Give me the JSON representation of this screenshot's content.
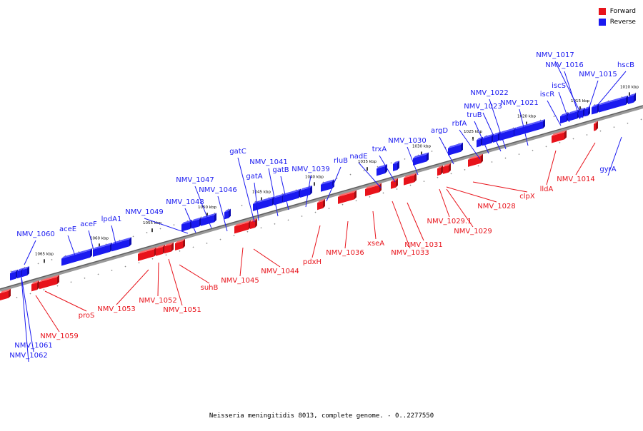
{
  "legend": {
    "forward": {
      "label": "Forward",
      "color": "#e8131b"
    },
    "reverse": {
      "label": "Reverse",
      "color": "#1a1af0"
    }
  },
  "caption": "Neisseria meningitidis 8013, complete genome. - 0..2277550",
  "ticks": [
    {
      "label": "1010 kbp"
    },
    {
      "label": "1015 kbp"
    },
    {
      "label": "1020 kbp"
    },
    {
      "label": "1025 kbp"
    },
    {
      "label": "1030 kbp"
    },
    {
      "label": "1035 kbp"
    },
    {
      "label": "1040 kbp"
    },
    {
      "label": "1045 kbp"
    },
    {
      "label": "1050 kbp"
    },
    {
      "label": "1055 kbp"
    },
    {
      "label": "1060 kbp"
    },
    {
      "label": "1065 kbp"
    }
  ],
  "reverse_genes": [
    {
      "name": "NMV_1060"
    },
    {
      "name": "aceE"
    },
    {
      "name": "aceF"
    },
    {
      "name": "lpdA1"
    },
    {
      "name": "NMV_1049"
    },
    {
      "name": "NMV_1048"
    },
    {
      "name": "NMV_1047"
    },
    {
      "name": "NMV_1046"
    },
    {
      "name": "gatC"
    },
    {
      "name": "gatA"
    },
    {
      "name": "NMV_1041"
    },
    {
      "name": "gatB"
    },
    {
      "name": "NMV_1039"
    },
    {
      "name": "rluB"
    },
    {
      "name": "nadE"
    },
    {
      "name": "trxA"
    },
    {
      "name": "NMV_1030"
    },
    {
      "name": "argD"
    },
    {
      "name": "rbfA"
    },
    {
      "name": "truB"
    },
    {
      "name": "NMV_1023"
    },
    {
      "name": "NMV_1022"
    },
    {
      "name": "NMV_1021"
    },
    {
      "name": "iscR"
    },
    {
      "name": "iscS"
    },
    {
      "name": "NMV_1016"
    },
    {
      "name": "NMV_1017"
    },
    {
      "name": "NMV_1015"
    },
    {
      "name": "hscB"
    },
    {
      "name": "gyrA"
    },
    {
      "name": "NMV_1061"
    },
    {
      "name": "NMV_1062"
    }
  ],
  "forward_genes": [
    {
      "name": "NMV_1059"
    },
    {
      "name": "proS"
    },
    {
      "name": "NMV_1053"
    },
    {
      "name": "NMV_1052"
    },
    {
      "name": "NMV_1051"
    },
    {
      "name": "suhB"
    },
    {
      "name": "NMV_1045"
    },
    {
      "name": "NMV_1044"
    },
    {
      "name": "pdxH"
    },
    {
      "name": "NMV_1036"
    },
    {
      "name": "xseA"
    },
    {
      "name": "NMV_1033"
    },
    {
      "name": "NMV_1031"
    },
    {
      "name": "NMV_1029.1"
    },
    {
      "name": "NMV_1029"
    },
    {
      "name": "NMV_1028"
    },
    {
      "name": "clpX"
    },
    {
      "name": "lldA"
    },
    {
      "name": "NMV_1014"
    }
  ]
}
